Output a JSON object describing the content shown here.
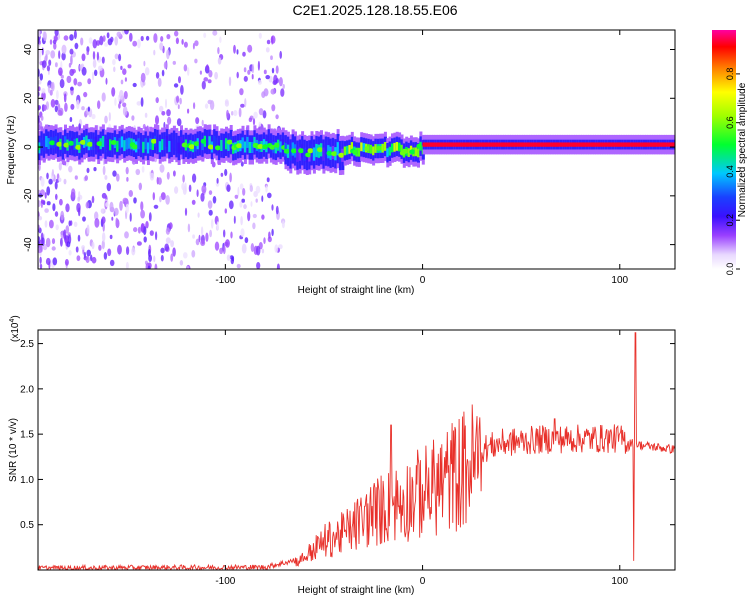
{
  "title": "C2E1.2025.128.18.55.E06",
  "spectrogram": {
    "type": "heatmap",
    "xlabel": "Height of straight line (km)",
    "ylabel": "Frequency (Hz)",
    "xlim": [
      -195,
      128
    ],
    "ylim": [
      -50,
      48
    ],
    "xticks": [
      -100,
      0,
      100
    ],
    "yticks": [
      -40,
      -20,
      0,
      20,
      40
    ],
    "colorbar": {
      "label": "Normalized spectral amplitude",
      "range": [
        0,
        0.98
      ],
      "ticks": [
        "0.0",
        "0.2",
        "0.4",
        "0.6",
        "0.8"
      ]
    },
    "band": {
      "segments": [
        {
          "x0": -195,
          "x1": -70,
          "center": 1,
          "halfwidth": 5,
          "level": 0.35
        },
        {
          "x0": -70,
          "x1": -40,
          "center": -2,
          "halfwidth": 6,
          "level": 0.3
        },
        {
          "x0": -40,
          "x1": 0,
          "center": -1,
          "halfwidth": 4,
          "level": 0.55
        },
        {
          "x0": 0,
          "x1": 128,
          "center": 1,
          "halfwidth": 2,
          "level": 0.95
        }
      ]
    }
  },
  "snr": {
    "type": "line",
    "xlabel": "Height of straight line (km)",
    "ylabel": "SNR (10 * v/v)",
    "multiplier": "(x10",
    "multiplier_exp": "4",
    "multiplier_close": ")",
    "xlim": [
      -195,
      128
    ],
    "ylim": [
      0,
      2.65
    ],
    "xticks": [
      -100,
      0,
      100
    ],
    "yticks": [
      "0.5",
      "1.0",
      "1.5",
      "2.0",
      "2.5"
    ],
    "line_color": "#e8302a",
    "envelope": [
      {
        "x": -195,
        "y": 0.02
      },
      {
        "x": -80,
        "y": 0.03
      },
      {
        "x": -62,
        "y": 0.12
      },
      {
        "x": -50,
        "y": 0.35
      },
      {
        "x": -40,
        "y": 0.45
      },
      {
        "x": -25,
        "y": 0.7
      },
      {
        "x": -10,
        "y": 0.85
      },
      {
        "x": 5,
        "y": 1.0
      },
      {
        "x": 15,
        "y": 1.15
      },
      {
        "x": 25,
        "y": 1.3
      },
      {
        "x": 40,
        "y": 1.4
      },
      {
        "x": 60,
        "y": 1.44
      },
      {
        "x": 80,
        "y": 1.45
      },
      {
        "x": 100,
        "y": 1.45
      },
      {
        "x": 110,
        "y": 1.38
      },
      {
        "x": 128,
        "y": 1.33
      }
    ],
    "spikes": [
      {
        "x": 108,
        "y": 2.62
      },
      {
        "x": 107,
        "y": 0.1
      },
      {
        "x": -16,
        "y": 1.6
      },
      {
        "x": 67,
        "y": 1.67
      }
    ]
  }
}
